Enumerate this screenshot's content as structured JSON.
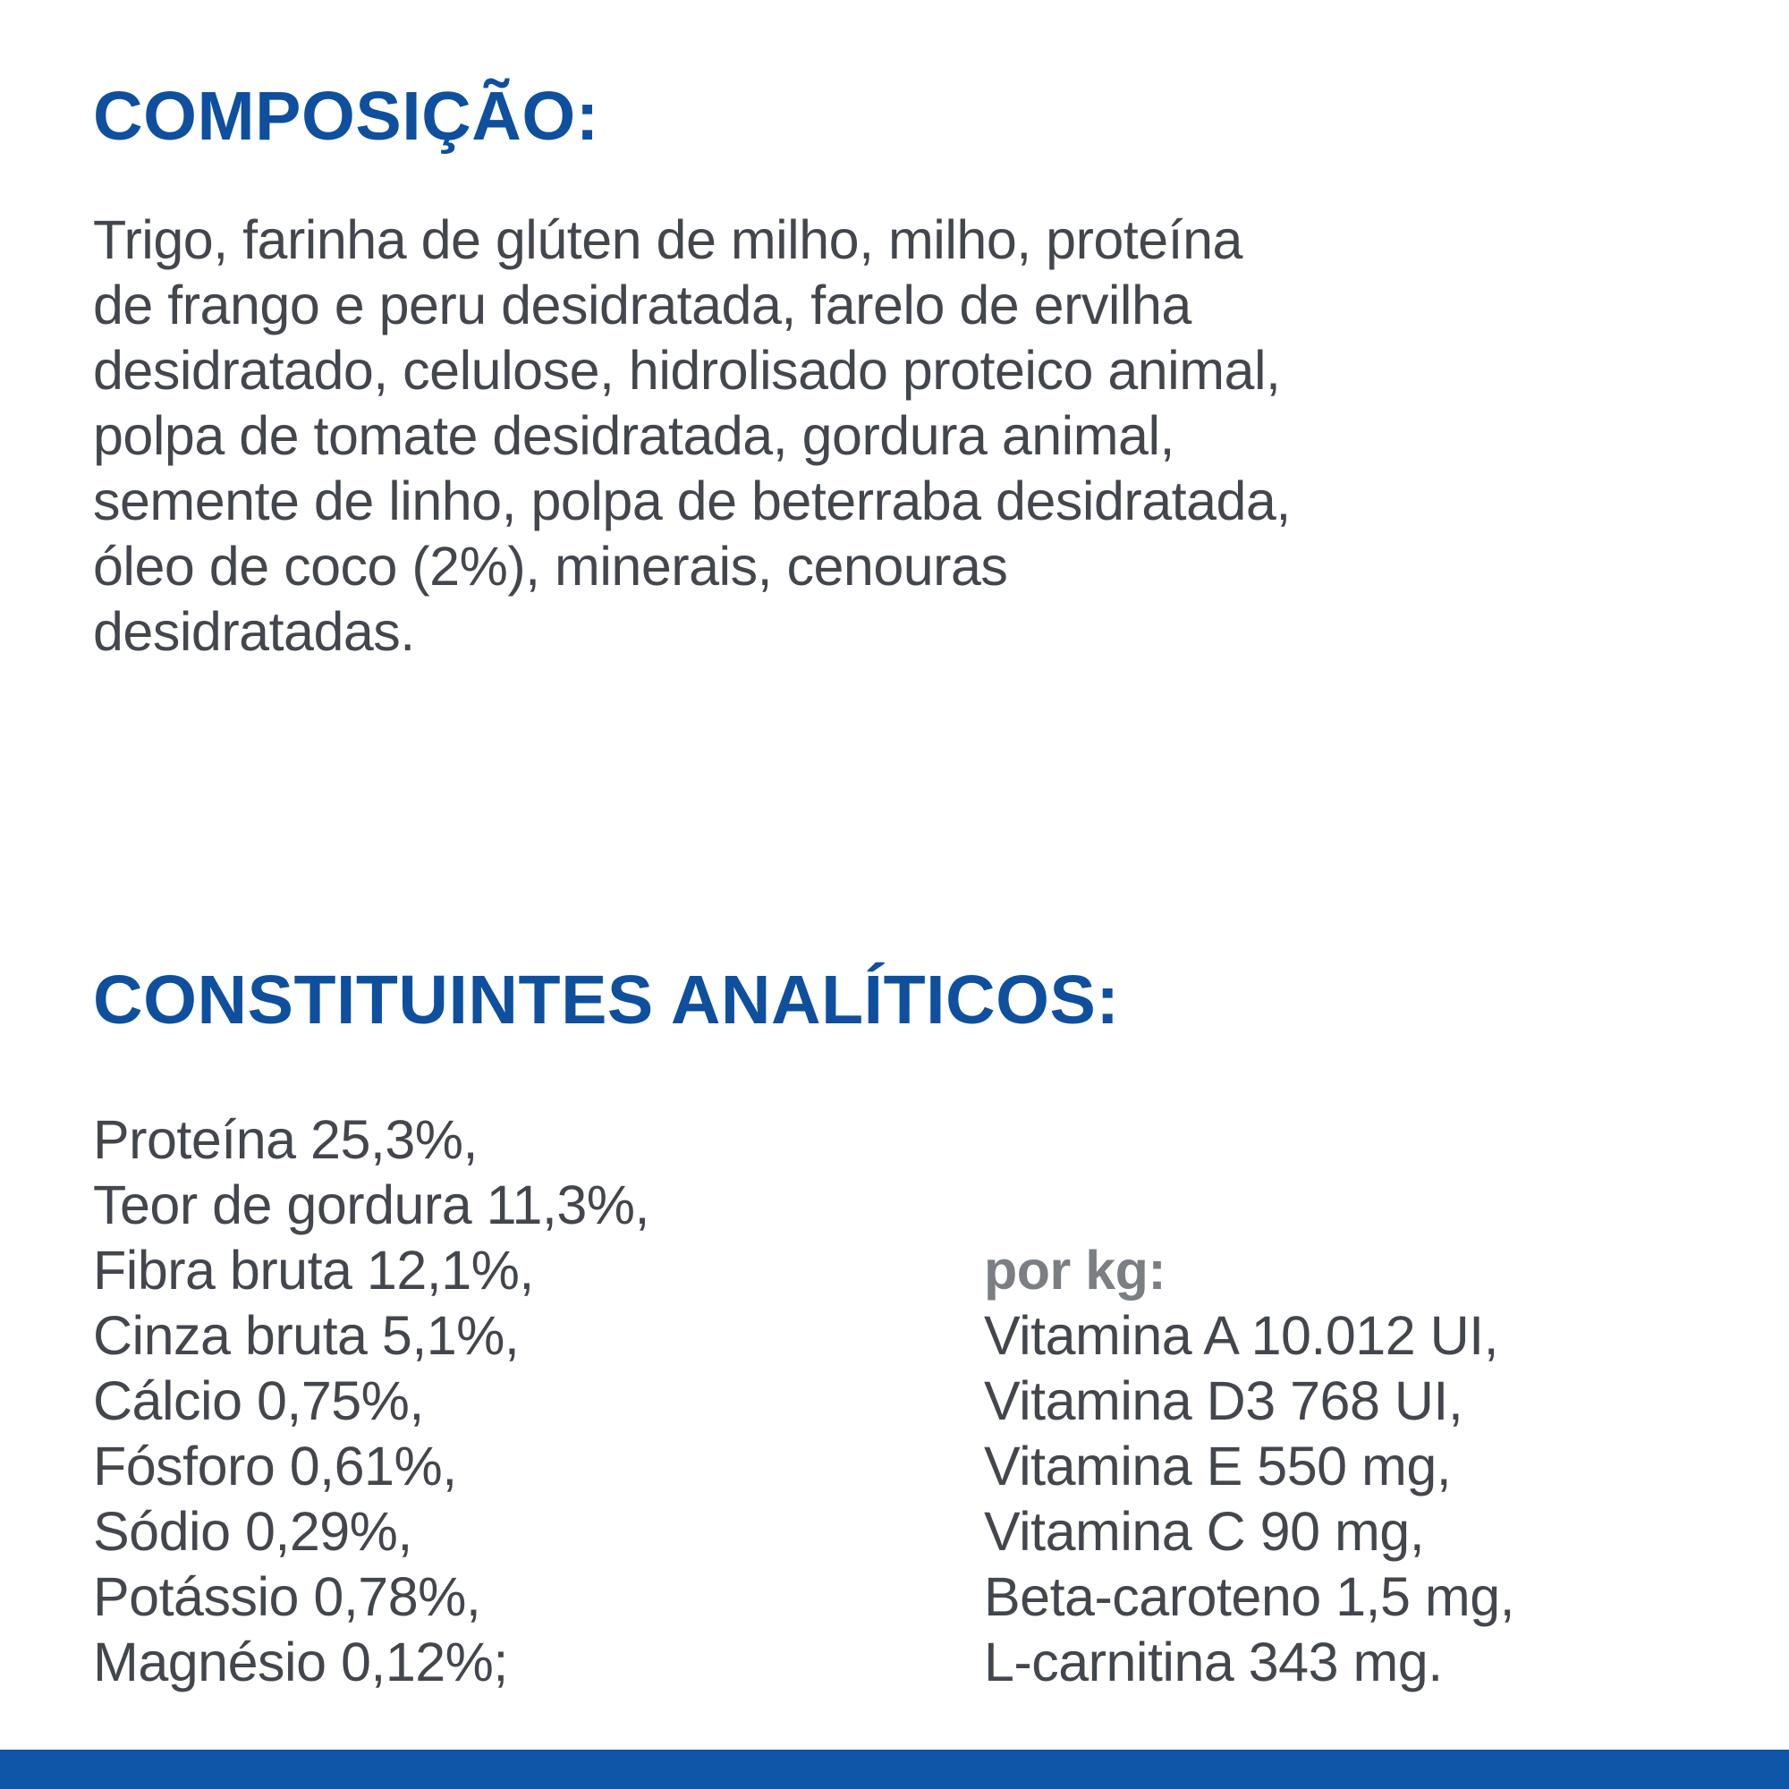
{
  "label": {
    "composition": {
      "heading": "COMPOSIÇÃO:",
      "lines": [
        "Trigo, farinha de glúten de milho, milho, proteína",
        "de frango e peru desidratada, farelo de ervilha",
        "desidratado, celulose, hidrolisado proteico animal,",
        "polpa de tomate desidratada, gordura animal,",
        "semente de linho, polpa de beterraba desidratada,",
        "óleo de coco (2%), minerais, cenouras",
        "desidratadas."
      ]
    },
    "analytical": {
      "heading": "CONSTITUINTES ANALÍTICOS:",
      "left_items": [
        "Proteína 25,3%,",
        "Teor de gordura 11,3%,",
        "Fibra bruta 12,1%,",
        "Cinza bruta 5,1%,",
        "Cálcio 0,75%,",
        "Fósforo 0,61%,",
        "Sódio 0,29%,",
        "Potássio 0,78%,",
        "Magnésio 0,12%;"
      ],
      "per_kg": {
        "heading": "por kg:",
        "items": [
          "Vitamina A 10.012 UI,",
          "Vitamina D3 768 UI,",
          "Vitamina E 550 mg,",
          "Vitamina C 90 mg,",
          "Beta-caroteno 1,5 mg,",
          "L-carnitina 343 mg."
        ]
      }
    },
    "colors": {
      "heading_blue": "#0e4f9e",
      "body_gray": "#43474d",
      "per_kg_gray": "#7b7e82",
      "footer_bar_blue": "#0f56a8"
    }
  }
}
